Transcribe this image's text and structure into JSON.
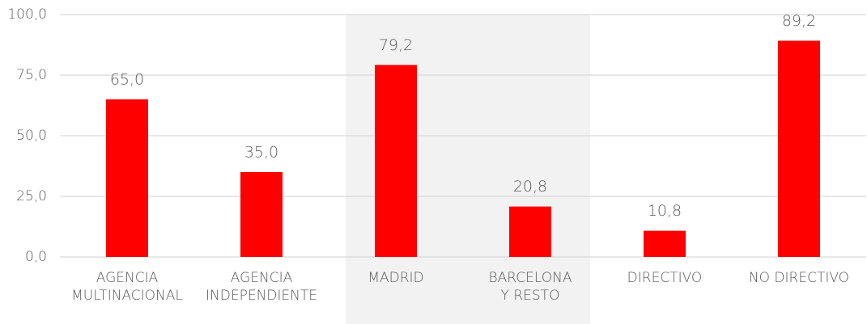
{
  "chart_data": {
    "type": "bar",
    "categories": [
      "AGENCIA\nMULTINACIONAL",
      "AGENCIA\nINDEPENDIENTE",
      "MADRID",
      "BARCELONA\nY RESTO",
      "DIRECTIVO",
      "NO DIRECTIVO"
    ],
    "values": [
      65.0,
      35.0,
      79.2,
      20.8,
      10.8,
      89.2
    ],
    "value_labels": [
      "65,0",
      "35,0",
      "79,2",
      "20,8",
      "10,8",
      "89,2"
    ],
    "color": "#ff0000",
    "ylim": [
      0,
      100
    ],
    "yticks": [
      {
        "value": 0,
        "label": "0,0"
      },
      {
        "value": 25,
        "label": "25,0"
      },
      {
        "value": 50,
        "label": "50,0"
      },
      {
        "value": 75,
        "label": "75,0"
      },
      {
        "value": 100,
        "label": "100,0"
      }
    ],
    "grid": true
  }
}
